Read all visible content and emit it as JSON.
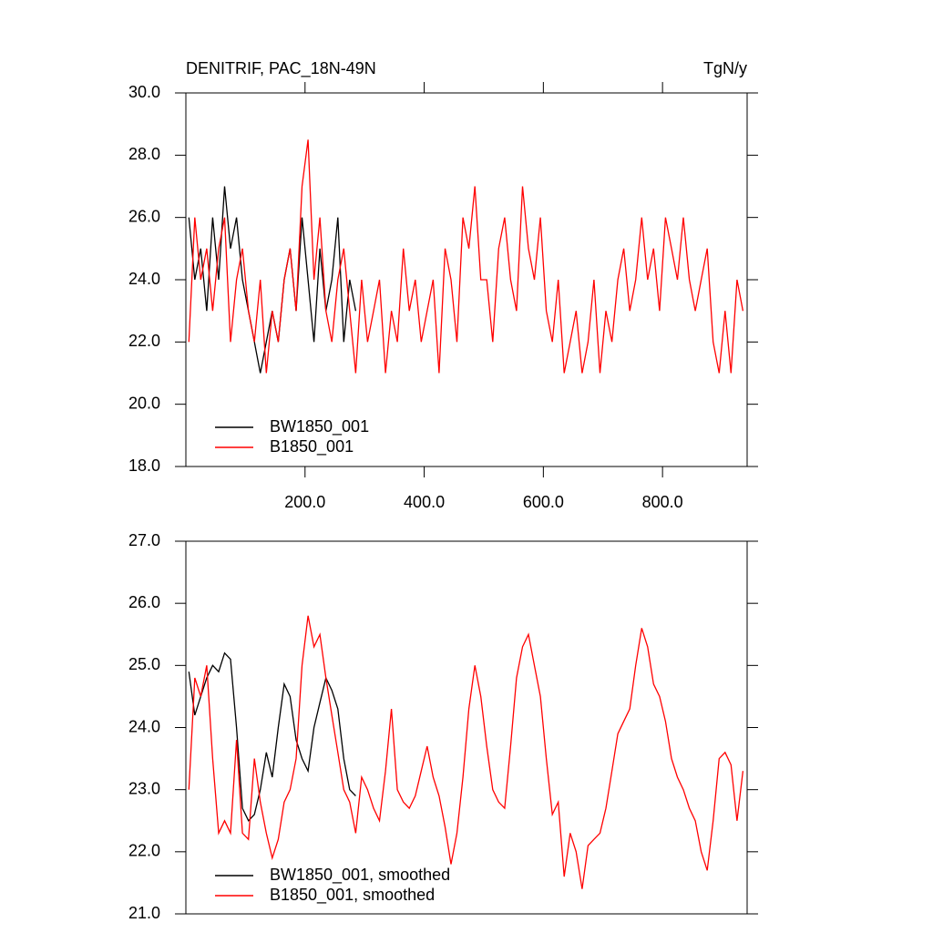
{
  "chart_data": [
    {
      "type": "line",
      "title": "DENITRIF, PAC_18N-49N",
      "right_title": "TgN/y",
      "xlim": [
        0,
        942
      ],
      "ylim": [
        18,
        30
      ],
      "xticks": [
        {
          "value": 200,
          "label": "200.0"
        },
        {
          "value": 400,
          "label": "400.0"
        },
        {
          "value": 600,
          "label": "600.0"
        },
        {
          "value": 800,
          "label": "800.0"
        }
      ],
      "yticks": [
        {
          "value": 18,
          "label": "18.0"
        },
        {
          "value": 20,
          "label": "20.0"
        },
        {
          "value": 22,
          "label": "22.0"
        },
        {
          "value": 24,
          "label": "24.0"
        },
        {
          "value": 26,
          "label": "26.0"
        },
        {
          "value": 28,
          "label": "28.0"
        },
        {
          "value": 30,
          "label": "30.0"
        }
      ],
      "series": [
        {
          "name": "BW1850_001",
          "color": "#000000",
          "x": [
            5,
            15,
            25,
            35,
            45,
            55,
            65,
            75,
            85,
            95,
            105,
            115,
            125,
            135,
            145,
            155,
            165,
            175,
            185,
            195,
            205,
            215,
            225,
            235,
            245,
            255,
            265,
            275,
            285
          ],
          "values": [
            26,
            24,
            25,
            23,
            26,
            24,
            27,
            25,
            26,
            24,
            23,
            22,
            21,
            22,
            23,
            22,
            24,
            25,
            23,
            26,
            24,
            22,
            25,
            23,
            24,
            26,
            22,
            24,
            23
          ]
        },
        {
          "name": "B1850_001",
          "color": "#ff0000",
          "x": [
            5,
            15,
            25,
            35,
            45,
            55,
            65,
            75,
            85,
            95,
            105,
            115,
            125,
            135,
            145,
            155,
            165,
            175,
            185,
            195,
            205,
            215,
            225,
            235,
            245,
            255,
            265,
            275,
            285,
            295,
            305,
            315,
            325,
            335,
            345,
            355,
            365,
            375,
            385,
            395,
            405,
            415,
            425,
            435,
            445,
            455,
            465,
            475,
            485,
            495,
            505,
            515,
            525,
            535,
            545,
            555,
            565,
            575,
            585,
            595,
            605,
            615,
            625,
            635,
            645,
            655,
            665,
            675,
            685,
            695,
            705,
            715,
            725,
            735,
            745,
            755,
            765,
            775,
            785,
            795,
            805,
            815,
            825,
            835,
            845,
            855,
            865,
            875,
            885,
            895,
            905,
            915,
            925,
            935
          ],
          "values": [
            22,
            26,
            24,
            25,
            23,
            25,
            26,
            22,
            24,
            25,
            23,
            22,
            24,
            21,
            23,
            22,
            24,
            25,
            23,
            27,
            28.5,
            24,
            26,
            23,
            22,
            24,
            25,
            23,
            21,
            24,
            22,
            23,
            24,
            21,
            23,
            22,
            25,
            23,
            24,
            22,
            23,
            24,
            21,
            25,
            24,
            22,
            26,
            25,
            27,
            24,
            24,
            22,
            25,
            26,
            24,
            23,
            27,
            25,
            24,
            26,
            23,
            22,
            24,
            21,
            22,
            23,
            21,
            22,
            24,
            21,
            23,
            22,
            24,
            25,
            23,
            24,
            26,
            24,
            25,
            23,
            26,
            25,
            24,
            26,
            24,
            23,
            24,
            25,
            22,
            21,
            23,
            21,
            24,
            23
          ]
        }
      ]
    },
    {
      "type": "line",
      "xlim": [
        0,
        942
      ],
      "ylim": [
        21,
        27
      ],
      "yticks": [
        {
          "value": 21,
          "label": "21.0"
        },
        {
          "value": 22,
          "label": "22.0"
        },
        {
          "value": 23,
          "label": "23.0"
        },
        {
          "value": 24,
          "label": "24.0"
        },
        {
          "value": 25,
          "label": "25.0"
        },
        {
          "value": 26,
          "label": "26.0"
        },
        {
          "value": 27,
          "label": "27.0"
        }
      ],
      "series": [
        {
          "name": "BW1850_001, smoothed",
          "color": "#000000",
          "x": [
            5,
            15,
            25,
            35,
            45,
            55,
            65,
            75,
            85,
            95,
            105,
            115,
            125,
            135,
            145,
            155,
            165,
            175,
            185,
            195,
            205,
            215,
            225,
            235,
            245,
            255,
            265,
            275,
            285
          ],
          "values": [
            24.9,
            24.2,
            24.5,
            24.8,
            25.0,
            24.9,
            25.2,
            25.1,
            24.0,
            22.7,
            22.5,
            22.6,
            23.0,
            23.6,
            23.2,
            24.0,
            24.7,
            24.5,
            23.8,
            23.5,
            23.3,
            24.0,
            24.4,
            24.8,
            24.6,
            24.3,
            23.5,
            23.0,
            22.9
          ]
        },
        {
          "name": "B1850_001, smoothed",
          "color": "#ff0000",
          "x": [
            5,
            15,
            25,
            35,
            45,
            55,
            65,
            75,
            85,
            95,
            105,
            115,
            125,
            135,
            145,
            155,
            165,
            175,
            185,
            195,
            205,
            215,
            225,
            235,
            245,
            255,
            265,
            275,
            285,
            295,
            305,
            315,
            325,
            335,
            345,
            355,
            365,
            375,
            385,
            395,
            405,
            415,
            425,
            435,
            445,
            455,
            465,
            475,
            485,
            495,
            505,
            515,
            525,
            535,
            545,
            555,
            565,
            575,
            585,
            595,
            605,
            615,
            625,
            635,
            645,
            655,
            665,
            675,
            685,
            695,
            705,
            715,
            725,
            735,
            745,
            755,
            765,
            775,
            785,
            795,
            805,
            815,
            825,
            835,
            845,
            855,
            865,
            875,
            885,
            895,
            905,
            915,
            925,
            935
          ],
          "values": [
            23.0,
            24.8,
            24.5,
            25.0,
            23.5,
            22.3,
            22.5,
            22.3,
            23.8,
            22.3,
            22.2,
            23.5,
            22.8,
            22.3,
            21.9,
            22.2,
            22.8,
            23.0,
            23.5,
            25.0,
            25.8,
            25.3,
            25.5,
            24.8,
            24.2,
            23.6,
            23.0,
            22.8,
            22.3,
            23.2,
            23.0,
            22.7,
            22.5,
            23.3,
            24.3,
            23.0,
            22.8,
            22.7,
            22.9,
            23.3,
            23.7,
            23.2,
            22.9,
            22.4,
            21.8,
            22.3,
            23.2,
            24.3,
            25.0,
            24.5,
            23.7,
            23.0,
            22.8,
            22.7,
            23.7,
            24.8,
            25.3,
            25.5,
            25.0,
            24.5,
            23.5,
            22.6,
            22.8,
            21.6,
            22.3,
            22.0,
            21.4,
            22.1,
            22.2,
            22.3,
            22.7,
            23.3,
            23.9,
            24.1,
            24.3,
            25.0,
            25.6,
            25.3,
            24.7,
            24.5,
            24.1,
            23.5,
            23.2,
            23.0,
            22.7,
            22.5,
            22.0,
            21.7,
            22.5,
            23.5,
            23.6,
            23.4,
            22.5,
            23.3
          ]
        }
      ]
    }
  ]
}
